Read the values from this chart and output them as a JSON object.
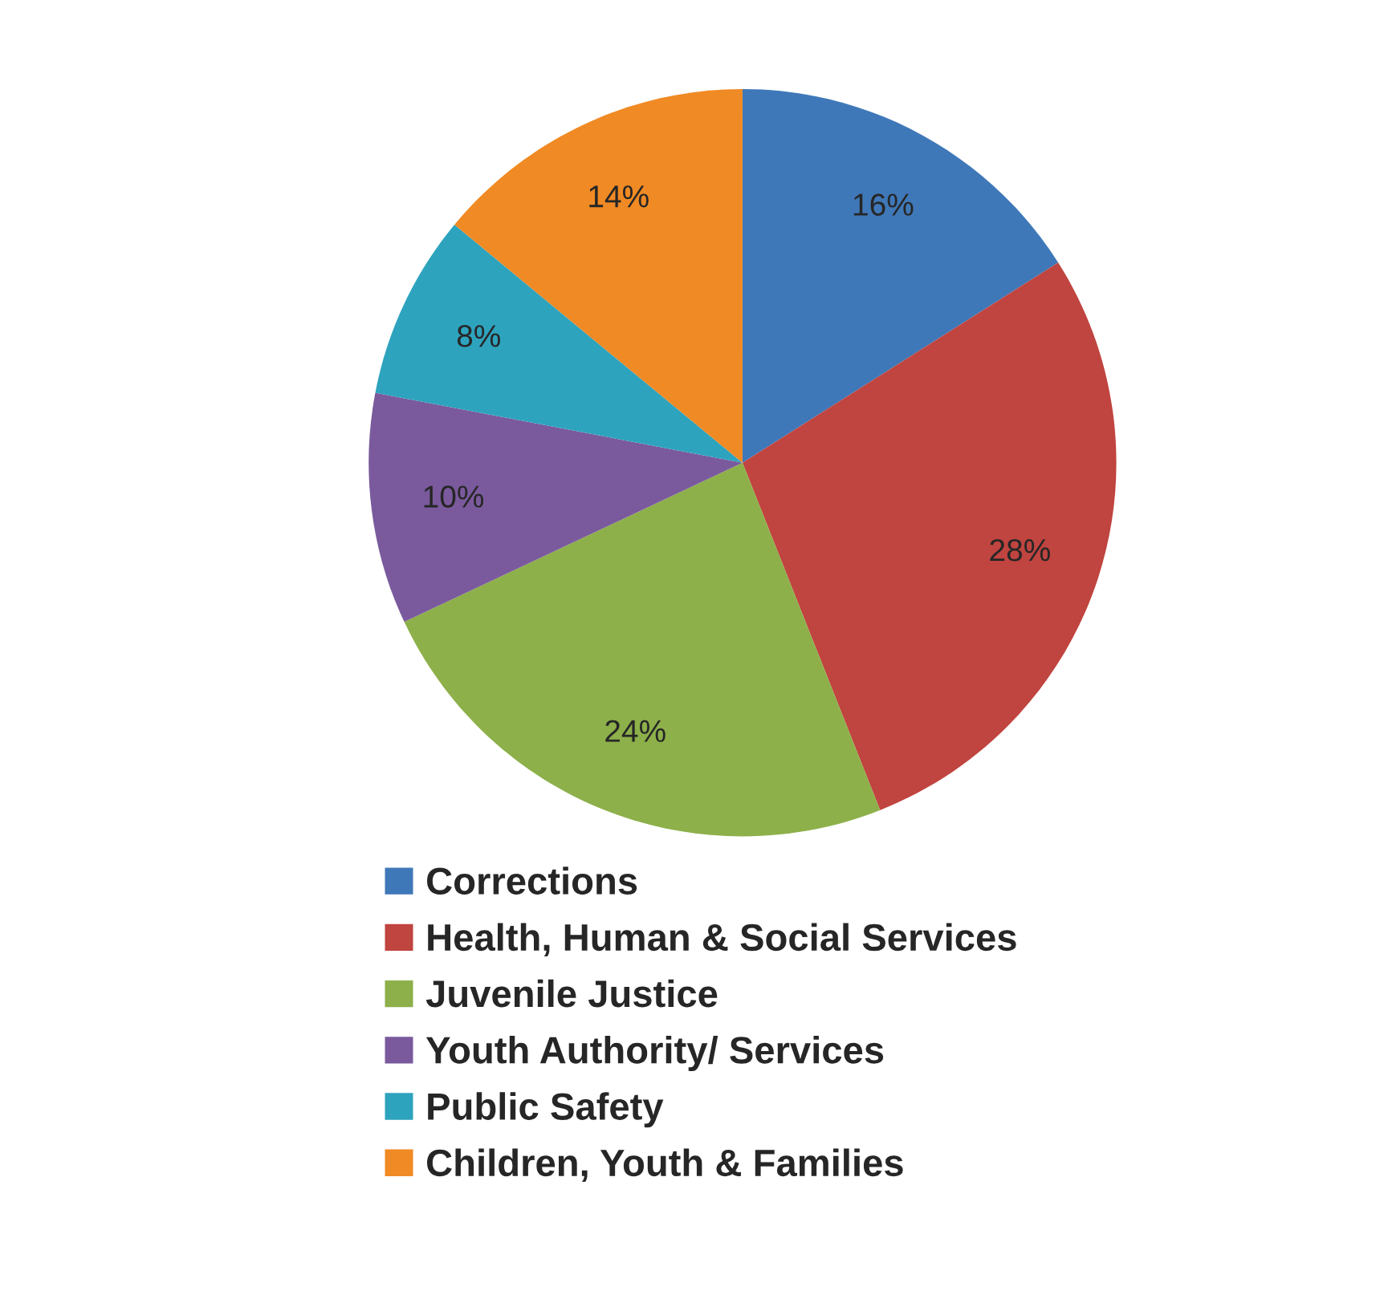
{
  "chart_data": {
    "type": "pie",
    "categories": [
      "Corrections",
      "Health, Human & Social Services",
      "Juvenile Justice",
      "Youth Authority/ Services",
      "Public Safety",
      "Children, Youth & Families"
    ],
    "values": [
      16,
      28,
      24,
      10,
      8,
      14
    ],
    "colors": [
      "#3f78b8",
      "#c0443f",
      "#8db04a",
      "#7a5a9d",
      "#2ea3be",
      "#f08a24"
    ],
    "value_labels": [
      "16%",
      "28%",
      "24%",
      "10%",
      "8%",
      "14%"
    ],
    "legend": "bottom"
  }
}
